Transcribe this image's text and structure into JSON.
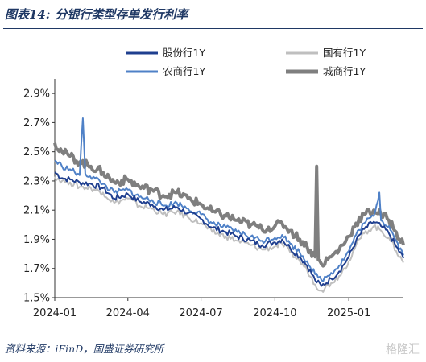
{
  "header": {
    "figure_no": "图表14:",
    "title": "分银行类型存单发行利率"
  },
  "footer": {
    "source": "资料来源：iFinD，国盛证券研究所",
    "watermark": "格隆汇"
  },
  "chart_data": {
    "type": "line",
    "title": "分银行类型存单发行利率",
    "xlabel": "",
    "ylabel": "",
    "x_ticks": [
      "2024-01",
      "2024-04",
      "2024-07",
      "2024-10",
      "2025-01"
    ],
    "y_ticks": [
      "1.5%",
      "1.7%",
      "1.9%",
      "2.1%",
      "2.3%",
      "2.5%",
      "2.7%",
      "2.9%"
    ],
    "ylim": [
      1.5,
      3.0
    ],
    "x_range": [
      "2024-01-01",
      "2025-03-10"
    ],
    "grid": false,
    "legend": "top",
    "series": [
      {
        "name": "股份行1Y",
        "color": "#1f3f8f",
        "width": 2,
        "points": [
          [
            "2024-01-01",
            2.36
          ],
          [
            "2024-01-10",
            2.32
          ],
          [
            "2024-01-20",
            2.31
          ],
          [
            "2024-02-01",
            2.29
          ],
          [
            "2024-02-15",
            2.28
          ],
          [
            "2024-03-01",
            2.25
          ],
          [
            "2024-03-15",
            2.18
          ],
          [
            "2024-04-01",
            2.21
          ],
          [
            "2024-04-15",
            2.16
          ],
          [
            "2024-05-01",
            2.14
          ],
          [
            "2024-05-15",
            2.1
          ],
          [
            "2024-06-01",
            2.12
          ],
          [
            "2024-06-15",
            2.08
          ],
          [
            "2024-07-01",
            2.04
          ],
          [
            "2024-07-15",
            1.98
          ],
          [
            "2024-08-01",
            1.95
          ],
          [
            "2024-08-15",
            1.92
          ],
          [
            "2024-09-01",
            1.89
          ],
          [
            "2024-09-15",
            1.86
          ],
          [
            "2024-10-01",
            1.88
          ],
          [
            "2024-10-10",
            1.9
          ],
          [
            "2024-10-20",
            1.84
          ],
          [
            "2024-11-01",
            1.78
          ],
          [
            "2024-11-10",
            1.72
          ],
          [
            "2024-11-20",
            1.62
          ],
          [
            "2024-11-28",
            1.58
          ],
          [
            "2024-12-10",
            1.63
          ],
          [
            "2024-12-20",
            1.68
          ],
          [
            "2025-01-01",
            1.78
          ],
          [
            "2025-01-10",
            1.89
          ],
          [
            "2025-01-20",
            1.97
          ],
          [
            "2025-02-01",
            2.02
          ],
          [
            "2025-02-10",
            1.99
          ],
          [
            "2025-02-20",
            1.94
          ],
          [
            "2025-03-01",
            1.85
          ],
          [
            "2025-03-10",
            1.77
          ]
        ]
      },
      {
        "name": "国有行1Y",
        "color": "#bfbfbf",
        "width": 2,
        "points": [
          [
            "2024-01-01",
            2.33
          ],
          [
            "2024-01-10",
            2.3
          ],
          [
            "2024-01-20",
            2.29
          ],
          [
            "2024-02-01",
            2.26
          ],
          [
            "2024-02-15",
            2.25
          ],
          [
            "2024-03-01",
            2.22
          ],
          [
            "2024-03-15",
            2.15
          ],
          [
            "2024-04-01",
            2.18
          ],
          [
            "2024-04-15",
            2.13
          ],
          [
            "2024-05-01",
            2.11
          ],
          [
            "2024-05-15",
            2.07
          ],
          [
            "2024-06-01",
            2.09
          ],
          [
            "2024-06-15",
            2.05
          ],
          [
            "2024-07-01",
            2.01
          ],
          [
            "2024-07-15",
            1.95
          ],
          [
            "2024-08-01",
            1.92
          ],
          [
            "2024-08-15",
            1.89
          ],
          [
            "2024-09-01",
            1.86
          ],
          [
            "2024-09-15",
            1.83
          ],
          [
            "2024-10-01",
            1.85
          ],
          [
            "2024-10-10",
            1.87
          ],
          [
            "2024-10-20",
            1.81
          ],
          [
            "2024-11-01",
            1.75
          ],
          [
            "2024-11-10",
            1.69
          ],
          [
            "2024-11-20",
            1.59
          ],
          [
            "2024-11-28",
            1.55
          ],
          [
            "2024-12-10",
            1.6
          ],
          [
            "2024-12-20",
            1.65
          ],
          [
            "2025-01-01",
            1.75
          ],
          [
            "2025-01-10",
            1.86
          ],
          [
            "2025-01-20",
            1.94
          ],
          [
            "2025-02-01",
            1.99
          ],
          [
            "2025-02-10",
            1.96
          ],
          [
            "2025-02-20",
            1.91
          ],
          [
            "2025-03-01",
            1.82
          ],
          [
            "2025-03-10",
            1.74
          ]
        ]
      },
      {
        "name": "农商行1Y",
        "color": "#4f81c7",
        "width": 2,
        "points": [
          [
            "2024-01-01",
            2.44
          ],
          [
            "2024-01-10",
            2.4
          ],
          [
            "2024-01-20",
            2.38
          ],
          [
            "2024-02-01",
            2.34
          ],
          [
            "2024-02-05",
            2.73
          ],
          [
            "2024-02-08",
            2.35
          ],
          [
            "2024-02-20",
            2.32
          ],
          [
            "2024-03-01",
            2.28
          ],
          [
            "2024-03-15",
            2.22
          ],
          [
            "2024-04-01",
            2.24
          ],
          [
            "2024-04-15",
            2.19
          ],
          [
            "2024-05-01",
            2.17
          ],
          [
            "2024-05-15",
            2.13
          ],
          [
            "2024-06-01",
            2.15
          ],
          [
            "2024-06-15",
            2.11
          ],
          [
            "2024-07-01",
            2.07
          ],
          [
            "2024-07-15",
            2.01
          ],
          [
            "2024-08-01",
            1.98
          ],
          [
            "2024-08-15",
            1.95
          ],
          [
            "2024-09-01",
            1.92
          ],
          [
            "2024-09-15",
            1.89
          ],
          [
            "2024-10-01",
            1.91
          ],
          [
            "2024-10-10",
            1.93
          ],
          [
            "2024-10-20",
            1.87
          ],
          [
            "2024-11-01",
            1.81
          ],
          [
            "2024-11-10",
            1.75
          ],
          [
            "2024-11-20",
            1.66
          ],
          [
            "2024-11-28",
            1.62
          ],
          [
            "2024-12-10",
            1.67
          ],
          [
            "2024-12-20",
            1.72
          ],
          [
            "2025-01-01",
            1.82
          ],
          [
            "2025-01-10",
            1.93
          ],
          [
            "2025-01-20",
            2.01
          ],
          [
            "2025-02-01",
            2.06
          ],
          [
            "2025-02-08",
            2.22
          ],
          [
            "2025-02-10",
            2.03
          ],
          [
            "2025-02-20",
            1.99
          ],
          [
            "2025-03-01",
            1.89
          ],
          [
            "2025-03-10",
            1.79
          ]
        ]
      },
      {
        "name": "城商行1Y",
        "color": "#7f7f7f",
        "width": 4,
        "points": [
          [
            "2024-01-01",
            2.56
          ],
          [
            "2024-01-10",
            2.5
          ],
          [
            "2024-01-20",
            2.47
          ],
          [
            "2024-02-01",
            2.43
          ],
          [
            "2024-02-15",
            2.4
          ],
          [
            "2024-03-01",
            2.36
          ],
          [
            "2024-03-15",
            2.29
          ],
          [
            "2024-04-01",
            2.31
          ],
          [
            "2024-04-15",
            2.26
          ],
          [
            "2024-05-01",
            2.24
          ],
          [
            "2024-05-15",
            2.2
          ],
          [
            "2024-06-01",
            2.22
          ],
          [
            "2024-06-15",
            2.18
          ],
          [
            "2024-07-01",
            2.14
          ],
          [
            "2024-07-15",
            2.09
          ],
          [
            "2024-08-01",
            2.06
          ],
          [
            "2024-08-15",
            2.03
          ],
          [
            "2024-09-01",
            2.0
          ],
          [
            "2024-09-15",
            1.97
          ],
          [
            "2024-10-01",
            1.99
          ],
          [
            "2024-10-10",
            2.01
          ],
          [
            "2024-10-20",
            1.96
          ],
          [
            "2024-11-01",
            1.9
          ],
          [
            "2024-11-10",
            1.85
          ],
          [
            "2024-11-20",
            1.78
          ],
          [
            "2024-11-22",
            2.4
          ],
          [
            "2024-11-24",
            1.76
          ],
          [
            "2024-11-28",
            1.73
          ],
          [
            "2024-12-10",
            1.78
          ],
          [
            "2024-12-20",
            1.83
          ],
          [
            "2025-01-01",
            1.92
          ],
          [
            "2025-01-10",
            2.01
          ],
          [
            "2025-01-20",
            2.07
          ],
          [
            "2025-02-01",
            2.1
          ],
          [
            "2025-02-10",
            2.07
          ],
          [
            "2025-02-20",
            2.03
          ],
          [
            "2025-03-01",
            1.95
          ],
          [
            "2025-03-10",
            1.86
          ]
        ]
      }
    ]
  }
}
